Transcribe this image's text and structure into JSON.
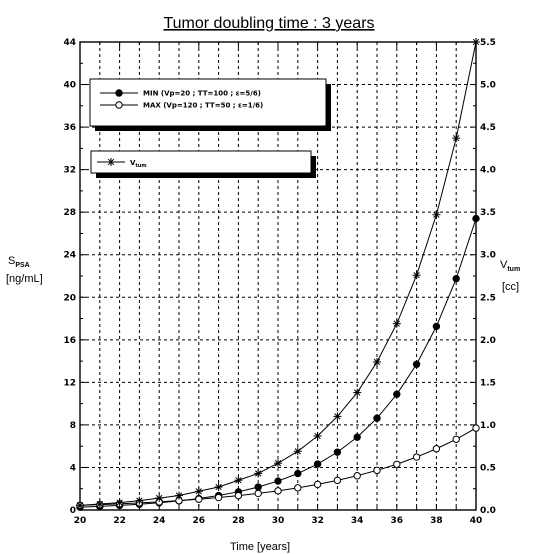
{
  "chart_data": {
    "type": "line",
    "title": "Tumor doubling time : 3 years",
    "xlabel": "Time [years]",
    "ylabel_left_main": "S",
    "ylabel_left_sub": "PSA",
    "ylabel_left_unit": "[ng/mL]",
    "ylabel_right_main": "V",
    "ylabel_right_sub": "tum",
    "ylabel_right_unit": "[cc]",
    "xlim": [
      20,
      40
    ],
    "ylim_left": [
      0,
      44
    ],
    "ylim_right": [
      0,
      5.5
    ],
    "x_ticks": [
      20,
      22,
      24,
      26,
      28,
      30,
      32,
      34,
      36,
      38,
      40
    ],
    "y_ticks_left": [
      0,
      4,
      8,
      12,
      16,
      20,
      24,
      28,
      32,
      36,
      40,
      44
    ],
    "y_ticks_right": [
      "0.0",
      "0.5",
      "1.0",
      "1.5",
      "2.0",
      "2.5",
      "3.0",
      "3.5",
      "4.0",
      "4.5",
      "5.0",
      "5.5"
    ],
    "grid": true,
    "x": [
      20,
      21,
      22,
      23,
      24,
      25,
      26,
      27,
      28,
      29,
      30,
      31,
      32,
      33,
      34,
      35,
      36,
      37,
      38,
      39,
      40
    ],
    "series": [
      {
        "name": "MIN  (Vp=20   ; TT=100  ; ε=5/6)",
        "marker": "filled-circle",
        "axis": "left",
        "values": [
          0.27,
          0.34,
          0.43,
          0.54,
          0.68,
          0.86,
          1.08,
          1.36,
          1.71,
          2.16,
          2.72,
          3.43,
          4.32,
          5.44,
          6.85,
          8.63,
          10.88,
          13.7,
          17.26,
          21.75,
          27.4
        ]
      },
      {
        "name": "MAX (Vp=120 ; TT=50  ; ε=1/6)",
        "marker": "open-circle",
        "axis": "left",
        "values": [
          0.44,
          0.5,
          0.58,
          0.67,
          0.76,
          0.88,
          1.01,
          1.17,
          1.35,
          1.56,
          1.8,
          2.08,
          2.41,
          2.79,
          3.22,
          3.73,
          4.3,
          4.98,
          5.76,
          6.65,
          7.7
        ]
      },
      {
        "name": "V",
        "name_sub": "tum",
        "marker": "asterisk",
        "axis": "right",
        "values": [
          0.055,
          0.07,
          0.087,
          0.11,
          0.14,
          0.17,
          0.22,
          0.27,
          0.35,
          0.43,
          0.55,
          0.69,
          0.87,
          1.1,
          1.38,
          1.74,
          2.19,
          2.76,
          3.47,
          4.37,
          5.5
        ]
      }
    ]
  }
}
